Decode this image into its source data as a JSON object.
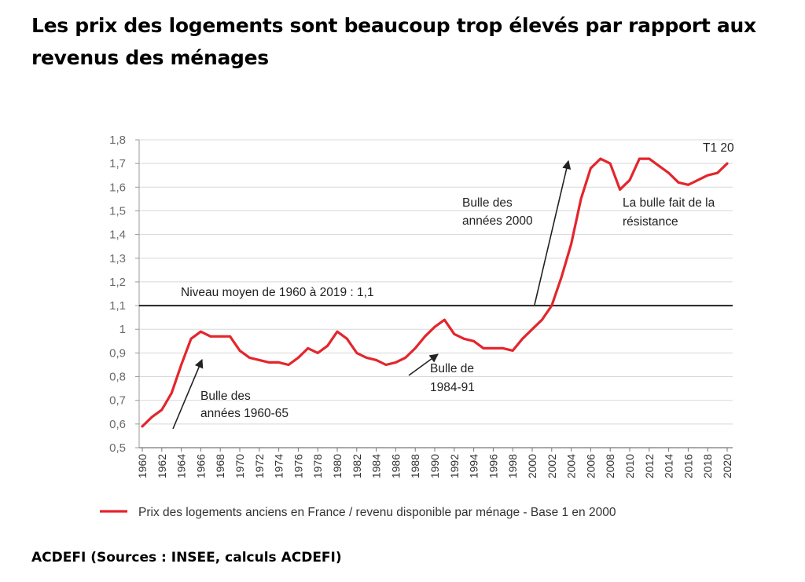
{
  "headline": "Les prix des logements sont beaucoup trop élevés par rapport aux revenus des ménages",
  "source": "ACDEFI (Sources : INSEE, calculs ACDEFI)",
  "colors": {
    "series": "#e3262d",
    "reference_line": "#222222",
    "axis_text": "#6a6a6a"
  },
  "chart_data": {
    "type": "line",
    "title": "",
    "xlabel": "",
    "ylabel": "",
    "ylim": [
      0.5,
      1.8
    ],
    "xlim": [
      1960,
      2020
    ],
    "y_ticks": [
      "1,8",
      "1,7",
      "1,6",
      "1,5",
      "1,4",
      "1,3",
      "1,2",
      "1,1",
      "1",
      "0,9",
      "0,8",
      "0,7",
      "0,6",
      "0,5"
    ],
    "x_ticks": [
      "1960",
      "1962",
      "1964",
      "1966",
      "1968",
      "1970",
      "1972",
      "1974",
      "1976",
      "1978",
      "1980",
      "1982",
      "1984",
      "1986",
      "1988",
      "1990",
      "1992",
      "1994",
      "1996",
      "1998",
      "2000",
      "2002",
      "2004",
      "2006",
      "2008",
      "2010",
      "2012",
      "2014",
      "2016",
      "2018",
      "2020"
    ],
    "grid": "horizontal",
    "legend_position": "bottom",
    "series": [
      {
        "name": "Prix des logements anciens en France / revenu disponible par ménage - Base 1 en 2000",
        "x": [
          1960,
          1961,
          1962,
          1963,
          1964,
          1965,
          1966,
          1967,
          1968,
          1969,
          1970,
          1971,
          1972,
          1973,
          1974,
          1975,
          1976,
          1977,
          1978,
          1979,
          1980,
          1981,
          1982,
          1983,
          1984,
          1985,
          1986,
          1987,
          1988,
          1989,
          1990,
          1991,
          1992,
          1993,
          1994,
          1995,
          1996,
          1997,
          1998,
          1999,
          2000,
          2001,
          2002,
          2003,
          2004,
          2005,
          2006,
          2007,
          2008,
          2009,
          2010,
          2011,
          2012,
          2013,
          2014,
          2015,
          2016,
          2017,
          2018,
          2019,
          2020
        ],
        "values": [
          0.59,
          0.63,
          0.66,
          0.73,
          0.85,
          0.96,
          0.99,
          0.97,
          0.97,
          0.97,
          0.91,
          0.88,
          0.87,
          0.86,
          0.86,
          0.85,
          0.88,
          0.92,
          0.9,
          0.93,
          0.99,
          0.96,
          0.9,
          0.88,
          0.87,
          0.85,
          0.86,
          0.88,
          0.92,
          0.97,
          1.01,
          1.04,
          0.98,
          0.96,
          0.95,
          0.92,
          0.92,
          0.92,
          0.91,
          0.96,
          1.0,
          1.04,
          1.1,
          1.22,
          1.36,
          1.55,
          1.68,
          1.72,
          1.7,
          1.59,
          1.63,
          1.72,
          1.72,
          1.69,
          1.66,
          1.62,
          1.61,
          1.63,
          1.65,
          1.66,
          1.7
        ]
      }
    ],
    "reference_line": {
      "y": 1.1,
      "label": "Niveau moyen de 1960 à 2019 : 1,1"
    },
    "end_label": "T1 20",
    "annotations": [
      {
        "lines": [
          "Bulle des",
          "années 1960-65"
        ]
      },
      {
        "lines": [
          "Bulle de",
          "1984-91"
        ]
      },
      {
        "lines": [
          "Bulle des",
          "années 2000"
        ]
      },
      {
        "lines": [
          "La bulle fait de la",
          "résistance"
        ]
      }
    ]
  }
}
